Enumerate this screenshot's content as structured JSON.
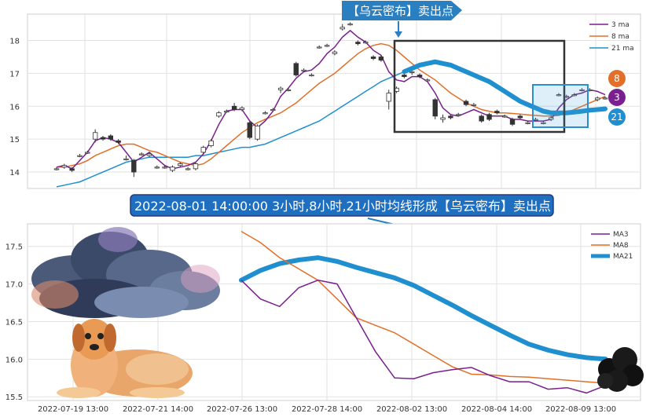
{
  "banner": {
    "text": "【乌云密布】卖出点"
  },
  "signal": {
    "text": "2022-08-01 14:00:00 3小时,8小时,21小时均线形成【乌云密布】卖出点"
  },
  "colors": {
    "ma3": "#7a1f8f",
    "ma8": "#e0702a",
    "ma21": "#1f8fcf",
    "banner": "#2a7fc0",
    "up": "#ffffff",
    "down": "#333333",
    "signalBox": "#1f6fc0"
  },
  "badges": {
    "ma8": "8",
    "ma3": "3",
    "ma21": "21"
  },
  "illustrations": [
    "storm-cloud",
    "dog",
    "black-cloud"
  ],
  "chart_data": [
    {
      "type": "candlestick",
      "ylim": [
        13.5,
        18.8
      ],
      "yticks": [
        "14",
        "15",
        "16",
        "17",
        "18"
      ],
      "grid": true,
      "legend_position": "top-right",
      "legend": [
        "3 ma",
        "8 ma",
        "21 ma"
      ],
      "ohlc": [
        [
          14.1,
          14.15,
          14.05,
          14.1
        ],
        [
          14.15,
          14.25,
          14.1,
          14.2
        ],
        [
          14.1,
          14.15,
          14.0,
          14.05
        ],
        [
          14.5,
          14.55,
          14.45,
          14.5
        ],
        [
          14.6,
          14.65,
          14.55,
          14.6
        ],
        [
          15.0,
          15.3,
          14.9,
          15.2
        ],
        [
          15.05,
          15.1,
          14.95,
          15.0
        ],
        [
          15.1,
          15.15,
          14.95,
          15.0
        ],
        [
          14.95,
          15.0,
          14.85,
          14.9
        ],
        [
          14.4,
          14.5,
          14.35,
          14.4
        ],
        [
          14.35,
          14.4,
          13.85,
          14.0
        ],
        [
          14.55,
          14.6,
          14.5,
          14.55
        ],
        [
          14.5,
          14.6,
          14.45,
          14.55
        ],
        [
          14.15,
          14.2,
          14.1,
          14.15
        ],
        [
          14.15,
          14.2,
          14.1,
          14.15
        ],
        [
          14.05,
          14.2,
          14.0,
          14.15
        ],
        [
          14.2,
          14.3,
          14.15,
          14.25
        ],
        [
          14.1,
          14.15,
          14.05,
          14.1
        ],
        [
          14.1,
          14.3,
          14.05,
          14.25
        ],
        [
          14.6,
          14.8,
          14.55,
          14.75
        ],
        [
          14.8,
          15.0,
          14.75,
          14.95
        ],
        [
          15.7,
          15.85,
          15.65,
          15.8
        ],
        [
          15.85,
          15.9,
          15.8,
          15.85
        ],
        [
          16.0,
          16.1,
          15.85,
          15.9
        ],
        [
          15.9,
          16.0,
          15.85,
          15.95
        ],
        [
          15.5,
          15.55,
          15.0,
          15.05
        ],
        [
          15.0,
          15.45,
          14.95,
          15.4
        ],
        [
          15.8,
          15.85,
          15.75,
          15.8
        ],
        [
          15.9,
          15.95,
          15.85,
          15.9
        ],
        [
          16.5,
          16.6,
          16.4,
          16.55
        ],
        [
          16.5,
          16.55,
          16.45,
          16.5
        ],
        [
          17.3,
          17.35,
          16.9,
          16.95
        ],
        [
          17.1,
          17.15,
          17.05,
          17.1
        ],
        [
          16.95,
          17.0,
          16.9,
          16.95
        ],
        [
          17.8,
          17.85,
          17.75,
          17.8
        ],
        [
          17.85,
          17.9,
          17.8,
          17.85
        ],
        [
          17.6,
          17.7,
          17.55,
          17.65
        ],
        [
          18.35,
          18.5,
          18.3,
          18.4
        ],
        [
          18.5,
          18.55,
          18.45,
          18.5
        ],
        [
          17.95,
          18.0,
          17.85,
          17.9
        ],
        [
          17.95,
          18.0,
          17.9,
          17.95
        ],
        [
          17.5,
          17.55,
          17.4,
          17.45
        ],
        [
          17.5,
          17.55,
          17.35,
          17.4
        ],
        [
          16.15,
          16.5,
          15.9,
          16.4
        ],
        [
          16.45,
          16.6,
          16.4,
          16.55
        ],
        [
          16.95,
          17.0,
          16.85,
          16.9
        ],
        [
          17.05,
          17.1,
          16.95,
          17.05
        ],
        [
          16.95,
          17.0,
          16.85,
          16.9
        ],
        [
          16.8,
          16.85,
          16.75,
          16.8
        ],
        [
          16.2,
          16.25,
          15.6,
          15.7
        ],
        [
          15.6,
          15.75,
          15.5,
          15.65
        ],
        [
          15.7,
          15.75,
          15.6,
          15.65
        ],
        [
          15.75,
          15.8,
          15.7,
          15.75
        ],
        [
          16.15,
          16.2,
          16.0,
          16.05
        ],
        [
          16.05,
          16.1,
          16.0,
          16.05
        ],
        [
          15.7,
          15.75,
          15.5,
          15.55
        ],
        [
          15.75,
          15.8,
          15.55,
          15.6
        ],
        [
          15.85,
          15.9,
          15.75,
          15.8
        ],
        [
          15.7,
          15.75,
          15.65,
          15.7
        ],
        [
          15.6,
          15.65,
          15.4,
          15.45
        ],
        [
          15.7,
          15.75,
          15.6,
          15.65
        ],
        [
          15.5,
          15.55,
          15.45,
          15.5
        ],
        [
          15.6,
          15.65,
          15.55,
          15.6
        ],
        [
          15.5,
          15.55,
          15.45,
          15.5
        ],
        [
          15.6,
          15.7,
          15.55,
          15.65
        ],
        [
          16.35,
          16.4,
          16.3,
          16.35
        ],
        [
          16.3,
          16.35,
          16.25,
          16.3
        ],
        [
          16.35,
          16.4,
          16.3,
          16.35
        ],
        [
          16.5,
          16.55,
          16.45,
          16.5
        ],
        [
          16.5,
          16.55,
          16.45,
          16.5
        ],
        [
          16.2,
          16.3,
          16.15,
          16.25
        ],
        [
          16.25,
          16.3,
          16.2,
          16.25
        ]
      ],
      "ma3": [
        14.15,
        14.2,
        14.1,
        14.35,
        14.6,
        14.95,
        15.05,
        15.0,
        14.9,
        14.6,
        14.3,
        14.45,
        14.6,
        14.4,
        14.2,
        14.1,
        14.15,
        14.2,
        14.3,
        14.55,
        14.95,
        15.45,
        15.85,
        15.9,
        15.9,
        15.55,
        15.35,
        15.55,
        15.85,
        16.3,
        16.55,
        16.85,
        17.05,
        17.1,
        17.3,
        17.6,
        17.8,
        18.1,
        18.3,
        18.1,
        17.95,
        17.7,
        17.55,
        17.05,
        16.8,
        16.75,
        16.9,
        16.9,
        16.75,
        16.4,
        15.95,
        15.75,
        15.7,
        15.8,
        15.9,
        15.8,
        15.7,
        15.7,
        15.7,
        15.6,
        15.6,
        15.55,
        15.55,
        15.55,
        15.6,
        15.95,
        16.2,
        16.35,
        16.4,
        16.5,
        16.45,
        16.35
      ],
      "ma8": [
        14.15,
        14.15,
        14.2,
        14.25,
        14.35,
        14.5,
        14.6,
        14.7,
        14.8,
        14.85,
        14.85,
        14.75,
        14.65,
        14.6,
        14.5,
        14.4,
        14.3,
        14.25,
        14.2,
        14.25,
        14.4,
        14.6,
        14.8,
        15.0,
        15.2,
        15.35,
        15.5,
        15.6,
        15.7,
        15.8,
        15.95,
        16.1,
        16.3,
        16.5,
        16.7,
        16.85,
        17.0,
        17.2,
        17.4,
        17.6,
        17.75,
        17.85,
        17.9,
        17.85,
        17.7,
        17.5,
        17.3,
        17.1,
        16.95,
        16.8,
        16.6,
        16.4,
        16.25,
        16.1,
        16.0,
        15.9,
        15.85,
        15.8,
        15.8,
        15.78,
        15.76,
        15.74,
        15.72,
        15.7,
        15.7,
        15.72,
        15.8,
        15.9,
        16.0,
        16.1,
        16.2,
        16.3
      ],
      "ma21": [
        13.55,
        13.6,
        13.65,
        13.7,
        13.8,
        13.9,
        14.0,
        14.1,
        14.2,
        14.3,
        14.35,
        14.4,
        14.45,
        14.45,
        14.45,
        14.45,
        14.45,
        14.45,
        14.5,
        14.5,
        14.55,
        14.6,
        14.65,
        14.7,
        14.75,
        14.75,
        14.8,
        14.85,
        14.95,
        15.05,
        15.15,
        15.25,
        15.35,
        15.45,
        15.55,
        15.7,
        15.85,
        16.0,
        16.15,
        16.3,
        16.45,
        16.6,
        16.75,
        16.85,
        16.95,
        17.05,
        17.15,
        17.25,
        17.3,
        17.35,
        17.3,
        17.25,
        17.15,
        17.05,
        16.95,
        16.85,
        16.75,
        16.6,
        16.45,
        16.3,
        16.15,
        16.05,
        15.95,
        15.85,
        15.8,
        15.8,
        15.8,
        15.82,
        15.85,
        15.88,
        15.9,
        15.92
      ]
    },
    {
      "type": "line",
      "xlim": [
        0,
        100
      ],
      "ylim": [
        15.45,
        17.8
      ],
      "yticks": [
        "15.5",
        "16.0",
        "16.5",
        "17.0",
        "17.5"
      ],
      "xticks": [
        "2022-07-19 13:00",
        "2022-07-21 14:00",
        "2022-07-26 13:00",
        "2022-07-28 14:00",
        "2022-08-02 13:00",
        "2022-08-04 14:00",
        "2022-08-09 13:00"
      ],
      "grid": true,
      "legend_position": "top-right",
      "series": [
        {
          "name": "MA3",
          "x": [
            0,
            5,
            10,
            15,
            20,
            25,
            30,
            35,
            40,
            45,
            50,
            55,
            60,
            65,
            70,
            75,
            80,
            85,
            90,
            95
          ],
          "values": [
            17.05,
            16.8,
            16.7,
            16.95,
            17.05,
            17.0,
            16.55,
            16.1,
            15.75,
            15.74,
            15.82,
            15.86,
            15.89,
            15.78,
            15.7,
            15.7,
            15.6,
            15.62,
            15.55,
            15.65
          ]
        },
        {
          "name": "MA8",
          "x": [
            0,
            5,
            10,
            15,
            20,
            25,
            30,
            35,
            40,
            45,
            50,
            55,
            60,
            65,
            70,
            75,
            80,
            85,
            90,
            95
          ],
          "values": [
            17.7,
            17.55,
            17.35,
            17.2,
            17.05,
            16.8,
            16.55,
            16.45,
            16.35,
            16.2,
            16.05,
            15.9,
            15.8,
            15.79,
            15.77,
            15.76,
            15.74,
            15.72,
            15.7,
            15.68
          ]
        },
        {
          "name": "MA21",
          "x": [
            0,
            5,
            10,
            15,
            20,
            25,
            30,
            35,
            40,
            45,
            50,
            55,
            60,
            65,
            70,
            75,
            80,
            85,
            90,
            95
          ],
          "values": [
            17.05,
            17.18,
            17.27,
            17.32,
            17.35,
            17.3,
            17.22,
            17.15,
            17.08,
            16.98,
            16.85,
            16.72,
            16.58,
            16.45,
            16.32,
            16.2,
            16.12,
            16.06,
            16.02,
            16.0
          ]
        }
      ]
    }
  ]
}
